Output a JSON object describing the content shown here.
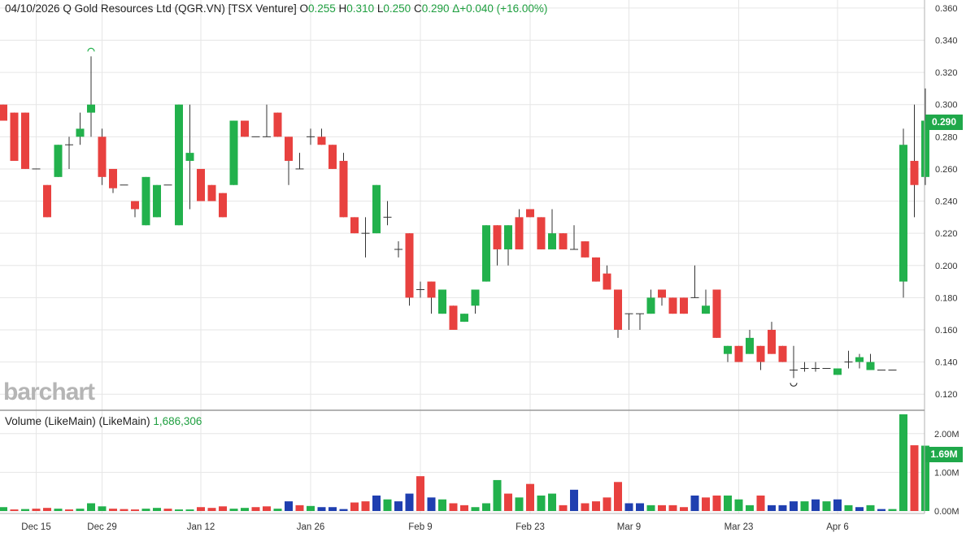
{
  "header": {
    "date": "04/10/2026",
    "name": "Q Gold Resources Ltd (QGR.VN) [TSX Venture]",
    "o_label": "O",
    "o_value": "0.255",
    "h_label": "H",
    "h_value": "0.310",
    "l_label": "L",
    "l_value": "0.250",
    "c_label": "C",
    "c_value": "0.290",
    "change": "Δ+0.040 (+16.00%)"
  },
  "volume_header": {
    "label": "Volume (LikeMain)  (LikeMain)",
    "value": "1,686,306"
  },
  "logo_text": "barchart",
  "price_badge": "0.290",
  "volume_badge": "1.69M",
  "colors": {
    "up": "#22b14c",
    "down": "#e8413f",
    "neutral": "#1f3fb0",
    "grid": "#e6e6e6",
    "badge": "#1fa84a"
  },
  "chart_data": [
    {
      "type": "candlestick",
      "name": "price",
      "ylim": [
        0.11,
        0.365
      ],
      "yticks": [
        "0.120",
        "0.140",
        "0.160",
        "0.180",
        "0.200",
        "0.220",
        "0.240",
        "0.260",
        "0.280",
        "0.300",
        "0.320",
        "0.340",
        "0.360"
      ],
      "x_labels": [
        "Dec 15",
        "Dec 29",
        "Jan 12",
        "Jan 26",
        "Feb 9",
        "Feb 23",
        "Mar 9",
        "Mar 23",
        "Apr 6"
      ],
      "x_label_index": [
        3,
        9,
        18,
        28,
        38,
        48,
        57,
        67,
        76
      ],
      "candles": [
        [
          0.3,
          0.3,
          0.29,
          0.29
        ],
        [
          0.295,
          0.295,
          0.265,
          0.265
        ],
        [
          0.295,
          0.295,
          0.26,
          0.26
        ],
        [
          0.26,
          0.26,
          0.26,
          0.26
        ],
        [
          0.25,
          0.25,
          0.23,
          0.23
        ],
        [
          0.255,
          0.275,
          0.255,
          0.275
        ],
        [
          0.275,
          0.28,
          0.26,
          0.275
        ],
        [
          0.28,
          0.295,
          0.275,
          0.285
        ],
        [
          0.295,
          0.33,
          0.28,
          0.3
        ],
        [
          0.28,
          0.285,
          0.25,
          0.255
        ],
        [
          0.26,
          0.26,
          0.245,
          0.248
        ],
        [
          0.25,
          0.25,
          0.25,
          0.25
        ],
        [
          0.24,
          0.24,
          0.23,
          0.235
        ],
        [
          0.225,
          0.255,
          0.225,
          0.255
        ],
        [
          0.23,
          0.25,
          0.23,
          0.25
        ],
        [
          0.25,
          0.25,
          0.25,
          0.25
        ],
        [
          0.225,
          0.3,
          0.225,
          0.3
        ],
        [
          0.265,
          0.3,
          0.235,
          0.27
        ],
        [
          0.26,
          0.26,
          0.24,
          0.24
        ],
        [
          0.25,
          0.25,
          0.24,
          0.24
        ],
        [
          0.245,
          0.245,
          0.23,
          0.23
        ],
        [
          0.25,
          0.29,
          0.25,
          0.29
        ],
        [
          0.29,
          0.29,
          0.28,
          0.28
        ],
        [
          0.28,
          0.28,
          0.28,
          0.28
        ],
        [
          0.28,
          0.3,
          0.28,
          0.28
        ],
        [
          0.295,
          0.295,
          0.28,
          0.28
        ],
        [
          0.28,
          0.28,
          0.25,
          0.265
        ],
        [
          0.26,
          0.27,
          0.26,
          0.26
        ],
        [
          0.28,
          0.285,
          0.275,
          0.28
        ],
        [
          0.28,
          0.285,
          0.275,
          0.275
        ],
        [
          0.275,
          0.275,
          0.26,
          0.26
        ],
        [
          0.265,
          0.27,
          0.23,
          0.23
        ],
        [
          0.23,
          0.23,
          0.22,
          0.22
        ],
        [
          0.22,
          0.23,
          0.205,
          0.22
        ],
        [
          0.22,
          0.25,
          0.22,
          0.25
        ],
        [
          0.23,
          0.24,
          0.225,
          0.23
        ],
        [
          0.21,
          0.215,
          0.205,
          0.21
        ],
        [
          0.22,
          0.22,
          0.175,
          0.18
        ],
        [
          0.185,
          0.19,
          0.18,
          0.185
        ],
        [
          0.19,
          0.19,
          0.17,
          0.18
        ],
        [
          0.17,
          0.185,
          0.17,
          0.185
        ],
        [
          0.175,
          0.175,
          0.16,
          0.16
        ],
        [
          0.165,
          0.17,
          0.165,
          0.17
        ],
        [
          0.175,
          0.185,
          0.17,
          0.185
        ],
        [
          0.19,
          0.225,
          0.19,
          0.225
        ],
        [
          0.225,
          0.225,
          0.2,
          0.21
        ],
        [
          0.21,
          0.225,
          0.2,
          0.225
        ],
        [
          0.23,
          0.235,
          0.21,
          0.21
        ],
        [
          0.235,
          0.235,
          0.23,
          0.23
        ],
        [
          0.23,
          0.23,
          0.21,
          0.21
        ],
        [
          0.21,
          0.235,
          0.21,
          0.22
        ],
        [
          0.22,
          0.22,
          0.21,
          0.21
        ],
        [
          0.21,
          0.225,
          0.21,
          0.21
        ],
        [
          0.215,
          0.215,
          0.205,
          0.205
        ],
        [
          0.205,
          0.205,
          0.19,
          0.19
        ],
        [
          0.195,
          0.2,
          0.185,
          0.185
        ],
        [
          0.185,
          0.185,
          0.155,
          0.16
        ],
        [
          0.17,
          0.17,
          0.16,
          0.17
        ],
        [
          0.17,
          0.17,
          0.16,
          0.17
        ],
        [
          0.17,
          0.185,
          0.17,
          0.18
        ],
        [
          0.185,
          0.185,
          0.175,
          0.18
        ],
        [
          0.18,
          0.18,
          0.17,
          0.17
        ],
        [
          0.18,
          0.18,
          0.17,
          0.17
        ],
        [
          0.18,
          0.2,
          0.18,
          0.18
        ],
        [
          0.17,
          0.185,
          0.17,
          0.175
        ],
        [
          0.185,
          0.185,
          0.155,
          0.155
        ],
        [
          0.145,
          0.15,
          0.14,
          0.15
        ],
        [
          0.15,
          0.15,
          0.14,
          0.14
        ],
        [
          0.145,
          0.16,
          0.145,
          0.155
        ],
        [
          0.15,
          0.15,
          0.135,
          0.14
        ],
        [
          0.16,
          0.165,
          0.145,
          0.145
        ],
        [
          0.15,
          0.15,
          0.14,
          0.14
        ],
        [
          0.135,
          0.15,
          0.13,
          0.135
        ],
        [
          0.136,
          0.14,
          0.134,
          0.136
        ],
        [
          0.136,
          0.14,
          0.134,
          0.136
        ],
        [
          0.136,
          0.136,
          0.136,
          0.136
        ],
        [
          0.132,
          0.136,
          0.132,
          0.136
        ],
        [
          0.14,
          0.147,
          0.136,
          0.14
        ],
        [
          0.14,
          0.145,
          0.136,
          0.143
        ],
        [
          0.135,
          0.145,
          0.135,
          0.14
        ],
        [
          0.135,
          0.135,
          0.135,
          0.135
        ],
        [
          0.135,
          0.135,
          0.135,
          0.135
        ],
        [
          0.19,
          0.285,
          0.18,
          0.275
        ],
        [
          0.265,
          0.3,
          0.23,
          0.25
        ],
        [
          0.255,
          0.31,
          0.25,
          0.29
        ]
      ]
    },
    {
      "type": "bar",
      "name": "volume",
      "ylim": [
        0,
        2.5
      ],
      "yticks": [
        "0.00M",
        "1.00M",
        "2.00M"
      ],
      "colors_code": "g=up r=down b=neutral",
      "values": [
        0.1,
        0.04,
        0.05,
        0.06,
        0.08,
        0.06,
        0.04,
        0.06,
        0.2,
        0.12,
        0.06,
        0.05,
        0.04,
        0.06,
        0.08,
        0.06,
        0.04,
        0.04,
        0.1,
        0.08,
        0.12,
        0.06,
        0.08,
        0.1,
        0.12,
        0.06,
        0.25,
        0.15,
        0.13,
        0.1,
        0.1,
        0.05,
        0.22,
        0.25,
        0.4,
        0.3,
        0.25,
        0.45,
        0.9,
        0.35,
        0.3,
        0.2,
        0.15,
        0.1,
        0.2,
        0.8,
        0.45,
        0.35,
        0.7,
        0.4,
        0.45,
        0.15,
        0.55,
        0.2,
        0.25,
        0.35,
        0.75,
        0.2,
        0.2,
        0.15,
        0.15,
        0.15,
        0.1,
        0.4,
        0.35,
        0.4,
        0.4,
        0.3,
        0.15,
        0.4,
        0.15,
        0.15,
        0.25,
        0.25,
        0.3,
        0.25,
        0.3,
        0.15,
        0.1,
        0.15,
        0.05,
        0.05,
        2.5,
        1.7,
        1.69
      ],
      "colors": [
        "g",
        "r",
        "g",
        "r",
        "r",
        "g",
        "r",
        "g",
        "g",
        "g",
        "r",
        "r",
        "r",
        "g",
        "g",
        "r",
        "g",
        "g",
        "r",
        "r",
        "r",
        "g",
        "g",
        "r",
        "r",
        "g",
        "b",
        "r",
        "g",
        "b",
        "b",
        "b",
        "r",
        "r",
        "b",
        "g",
        "b",
        "b",
        "r",
        "b",
        "g",
        "r",
        "r",
        "g",
        "g",
        "g",
        "r",
        "g",
        "r",
        "g",
        "g",
        "r",
        "b",
        "r",
        "r",
        "r",
        "r",
        "b",
        "b",
        "g",
        "r",
        "r",
        "r",
        "b",
        "r",
        "r",
        "g",
        "g",
        "g",
        "r",
        "b",
        "b",
        "b",
        "g",
        "b",
        "g",
        "b",
        "g",
        "b",
        "g",
        "b",
        "g",
        "g",
        "r",
        "g"
      ]
    }
  ]
}
